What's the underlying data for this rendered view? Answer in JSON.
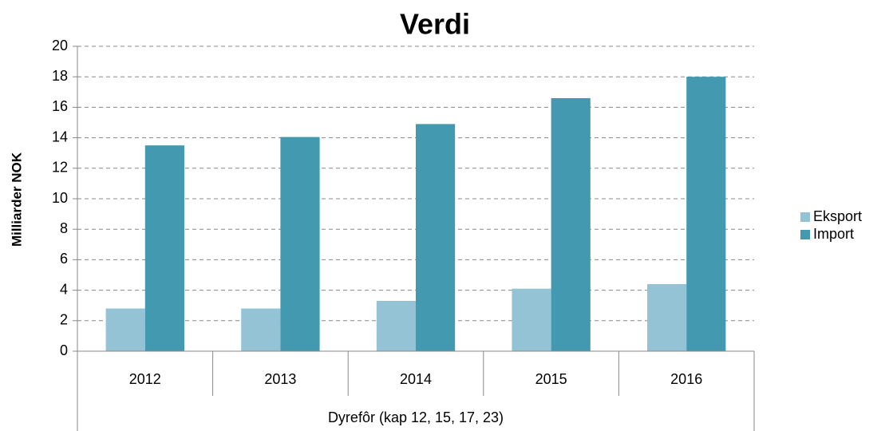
{
  "chart_data": {
    "type": "bar",
    "title": "Verdi",
    "y_label": "Milliarder NOK",
    "group_label": "Dyrefôr (kap 12, 15, 17, 23)",
    "categories": [
      "2012",
      "2013",
      "2014",
      "2015",
      "2016"
    ],
    "series": [
      {
        "name": "Eksport",
        "color": "#93c3d5",
        "values": [
          2.8,
          2.8,
          3.3,
          4.1,
          4.4
        ]
      },
      {
        "name": "Import",
        "color": "#4299b0",
        "values": [
          13.5,
          14.05,
          14.9,
          16.6,
          18.0
        ]
      }
    ],
    "ylim": [
      0,
      20
    ],
    "yticks": [
      0,
      2,
      4,
      6,
      8,
      10,
      12,
      14,
      16,
      18,
      20
    ],
    "grid": true,
    "legend": "right"
  }
}
